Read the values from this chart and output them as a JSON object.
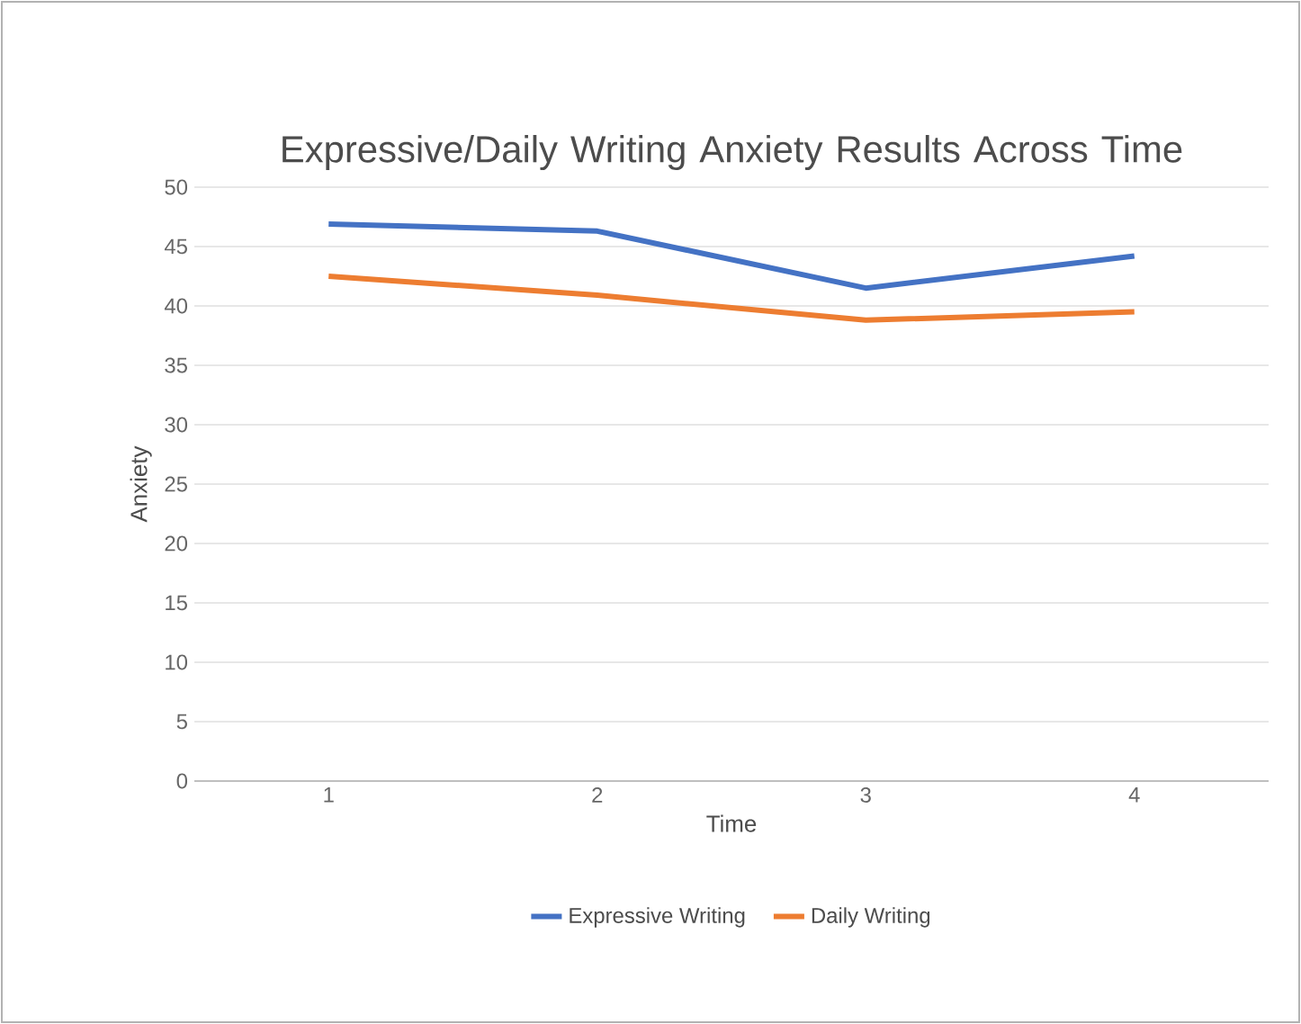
{
  "chart_data": {
    "type": "line",
    "title": "Expressive/Daily Writing Anxiety Results Across Time",
    "xlabel": "Time",
    "ylabel": "Anxiety",
    "categories": [
      "1",
      "2",
      "3",
      "4"
    ],
    "series": [
      {
        "name": "Expressive Writing",
        "color": "#4472c4",
        "values": [
          46.9,
          46.3,
          41.5,
          44.2
        ]
      },
      {
        "name": "Daily Writing",
        "color": "#ed7d31",
        "values": [
          42.5,
          40.9,
          38.8,
          39.5
        ]
      }
    ],
    "ylim": [
      0,
      50
    ],
    "yticks": [
      0,
      5,
      10,
      15,
      20,
      25,
      30,
      35,
      40,
      45,
      50
    ],
    "grid": "y",
    "legend": "bottom",
    "marker": "none",
    "line_style": "solid"
  }
}
